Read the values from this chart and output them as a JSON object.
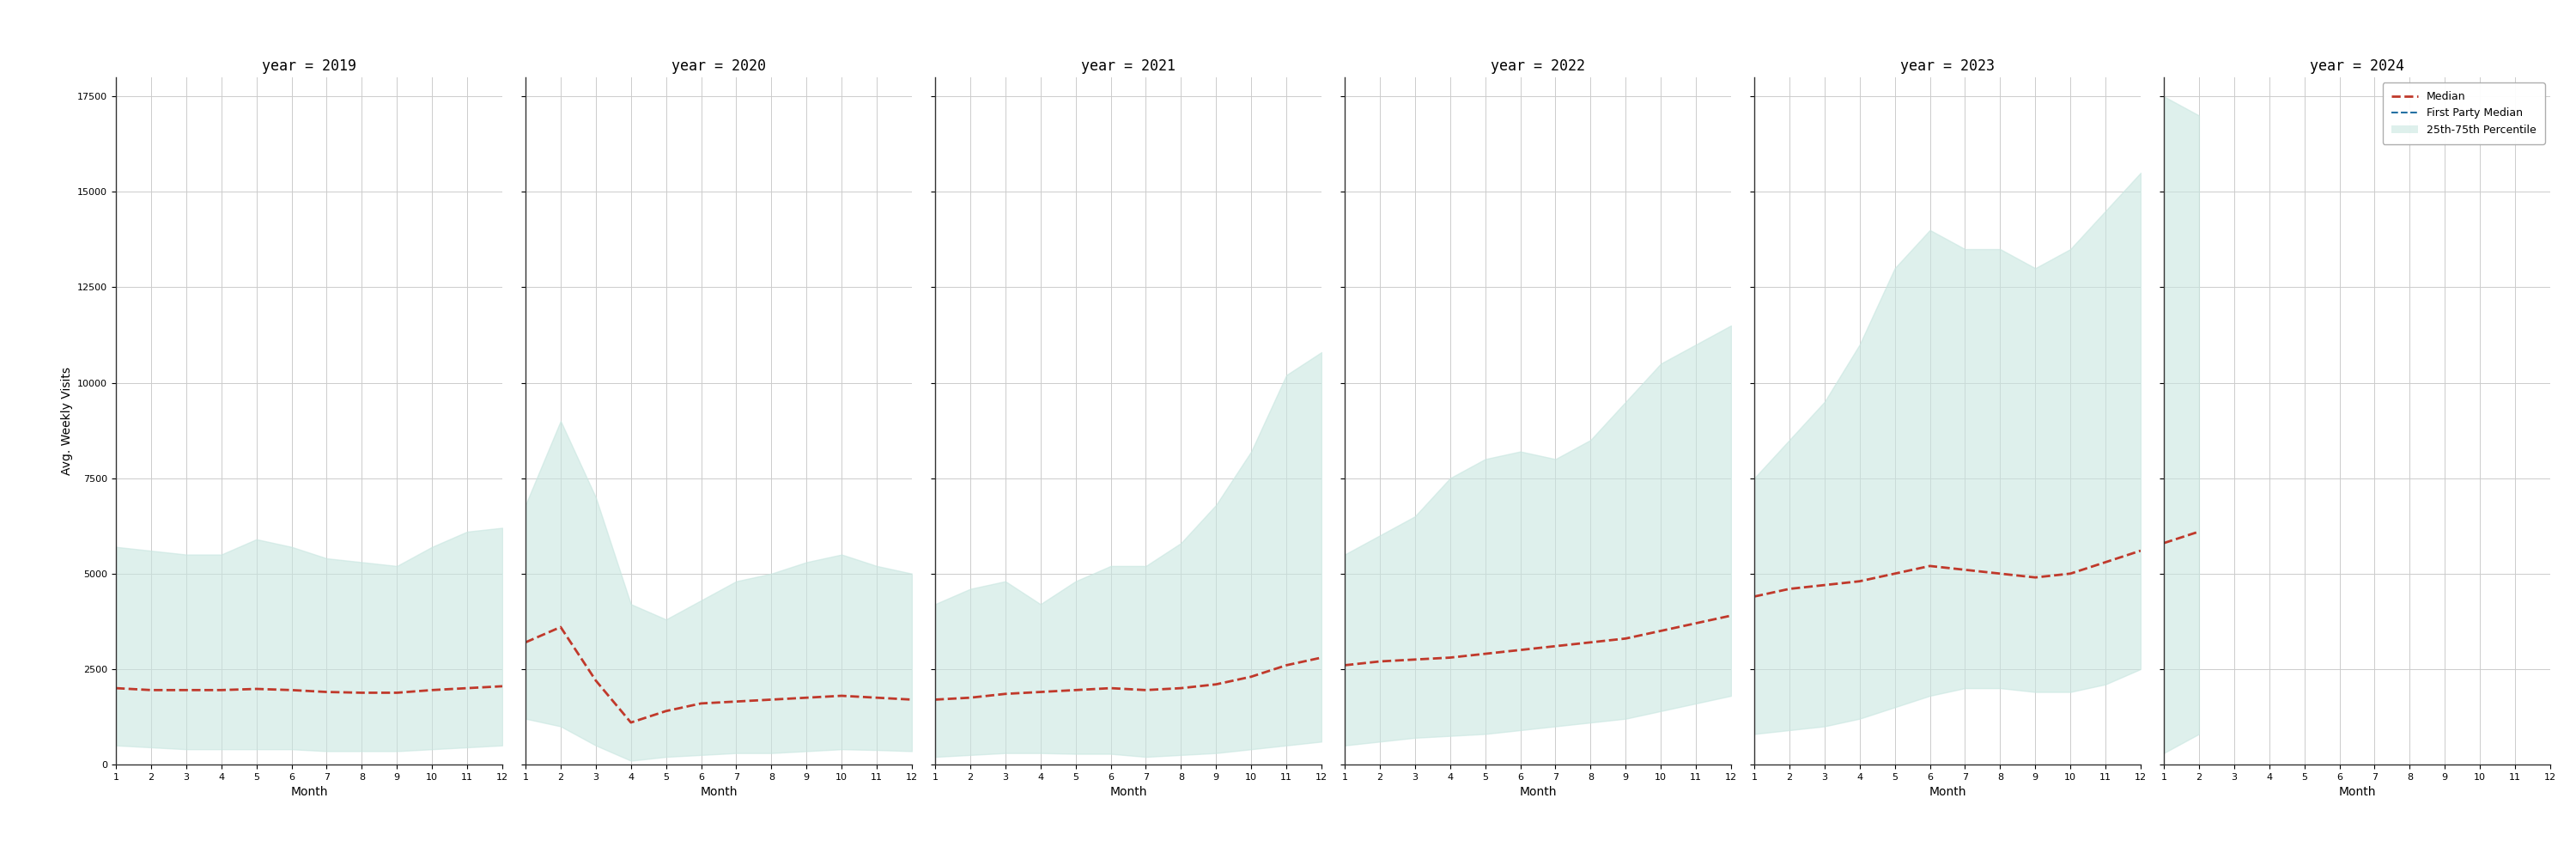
{
  "years": [
    2019,
    2020,
    2021,
    2022,
    2023,
    2024
  ],
  "months": [
    1,
    2,
    3,
    4,
    5,
    6,
    7,
    8,
    9,
    10,
    11,
    12
  ],
  "months_2024": [
    1,
    2
  ],
  "median": {
    "2019": [
      2000,
      1950,
      1950,
      1950,
      1980,
      1950,
      1900,
      1880,
      1880,
      1950,
      2000,
      2050
    ],
    "2020": [
      3200,
      3600,
      2200,
      1100,
      1400,
      1600,
      1650,
      1700,
      1750,
      1800,
      1750,
      1700
    ],
    "2021": [
      1700,
      1750,
      1850,
      1900,
      1950,
      2000,
      1950,
      2000,
      2100,
      2300,
      2600,
      2800
    ],
    "2022": [
      2600,
      2700,
      2750,
      2800,
      2900,
      3000,
      3100,
      3200,
      3300,
      3500,
      3700,
      3900
    ],
    "2023": [
      4400,
      4600,
      4700,
      4800,
      5000,
      5200,
      5100,
      5000,
      4900,
      5000,
      5300,
      5600
    ],
    "2024": [
      5800,
      6100
    ]
  },
  "p25": {
    "2019": [
      500,
      450,
      400,
      400,
      400,
      400,
      350,
      350,
      350,
      400,
      450,
      500
    ],
    "2020": [
      1200,
      1000,
      500,
      100,
      200,
      250,
      300,
      300,
      350,
      400,
      380,
      350
    ],
    "2021": [
      200,
      250,
      300,
      300,
      280,
      280,
      200,
      250,
      300,
      400,
      500,
      600
    ],
    "2022": [
      500,
      600,
      700,
      750,
      800,
      900,
      1000,
      1100,
      1200,
      1400,
      1600,
      1800
    ],
    "2023": [
      800,
      900,
      1000,
      1200,
      1500,
      1800,
      2000,
      2000,
      1900,
      1900,
      2100,
      2500
    ],
    "2024": [
      300,
      800
    ]
  },
  "p75": {
    "2019": [
      5700,
      5600,
      5500,
      5500,
      5900,
      5700,
      5400,
      5300,
      5200,
      5700,
      6100,
      6200
    ],
    "2020": [
      6800,
      9000,
      7000,
      4200,
      3800,
      4300,
      4800,
      5000,
      5300,
      5500,
      5200,
      5000
    ],
    "2021": [
      4200,
      4600,
      4800,
      4200,
      4800,
      5200,
      5200,
      5800,
      6800,
      8200,
      10200,
      10800
    ],
    "2022": [
      5500,
      6000,
      6500,
      7500,
      8000,
      8200,
      8000,
      8500,
      9500,
      10500,
      11000,
      11500
    ],
    "2023": [
      7500,
      8500,
      9500,
      11000,
      13000,
      14000,
      13500,
      13500,
      13000,
      13500,
      14500,
      15500
    ],
    "2024": [
      17500,
      17000
    ]
  },
  "fill_color": "#c8e6e0",
  "fill_alpha": 0.6,
  "median_color": "#c0392b",
  "fp_median_color": "#2471a3",
  "ylim": [
    0,
    18000
  ],
  "yticks": [
    0,
    2500,
    5000,
    7500,
    10000,
    12500,
    15000,
    17500
  ],
  "ylabel": "Avg. Weekly Visits",
  "xlabel": "Month",
  "title_prefix": "year = ",
  "background_color": "#ffffff",
  "grid_color": "#cccccc",
  "title_fontsize": 12,
  "axis_fontsize": 10,
  "tick_fontsize": 8
}
